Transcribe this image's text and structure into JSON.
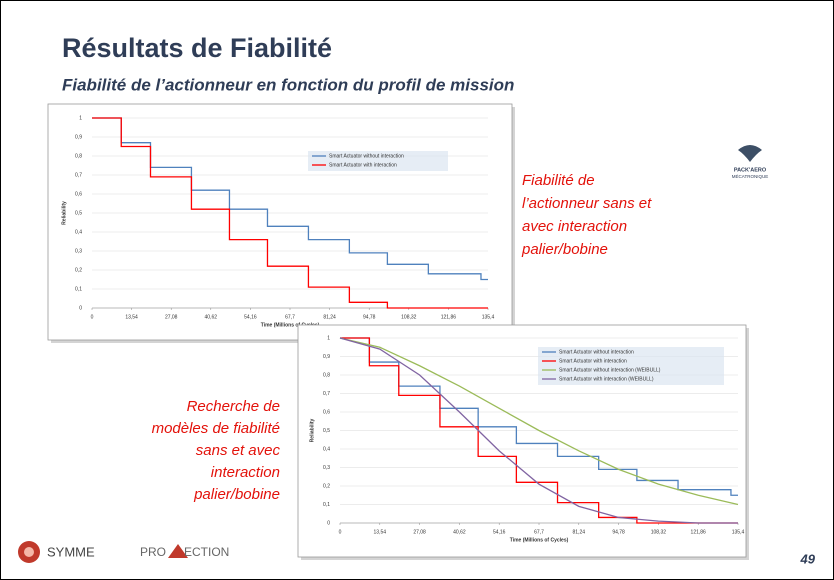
{
  "title": "Résultats de Fiabilité",
  "subtitle": "Fiabilité de l’actionneur en fonction du profil de mission",
  "note_right": [
    "Fiabilité de",
    "l’actionneur sans et",
    "avec interaction",
    "palier/bobine"
  ],
  "note_left": [
    "Recherche de",
    "modèles de fiabilité",
    "sans et avec",
    "interaction",
    "palier/bobine"
  ],
  "logo_top": [
    "PACK'AERO",
    "MÉCATRONIQUE"
  ],
  "footer": {
    "logo1": "SYMME",
    "logo2_left": "PRO",
    "logo2_right": "ECTION",
    "page": 49
  },
  "chart_data": [
    {
      "type": "line",
      "xlabel": "Time (Millions of Cycles)",
      "ylabel": "Reliability",
      "xlim": [
        0,
        135.4
      ],
      "xticks": [
        0,
        {
          "value": 13.54,
          "label": "13,54"
        },
        {
          "value": 27.08,
          "label": "27,08"
        },
        {
          "value": 40.62,
          "label": "40,62"
        },
        {
          "value": 54.16,
          "label": "54,16"
        },
        {
          "value": 67.7,
          "label": "67,7"
        },
        {
          "value": 81.24,
          "label": "81,24"
        },
        {
          "value": 94.78,
          "label": "94,78"
        },
        {
          "value": 108.32,
          "label": "108,32"
        },
        {
          "value": 121.86,
          "label": "121,86"
        },
        {
          "value": 135.4,
          "label": "135,4"
        }
      ],
      "ylim": [
        0,
        1
      ],
      "yticks": [
        0,
        {
          "value": 0.1,
          "label": "0,1"
        },
        {
          "value": 0.2,
          "label": "0,2"
        },
        {
          "value": 0.3,
          "label": "0,3"
        },
        {
          "value": 0.4,
          "label": "0,4"
        },
        {
          "value": 0.5,
          "label": "0,5"
        },
        {
          "value": 0.6,
          "label": "0,6"
        },
        {
          "value": 0.7,
          "label": "0,7"
        },
        {
          "value": 0.8,
          "label": "0,8"
        },
        {
          "value": 0.9,
          "label": "0,9"
        },
        1
      ],
      "grid": true,
      "series": [
        {
          "name": "Smart Actuator without interaction",
          "color": "#4f81bd",
          "x": [
            0,
            10,
            10,
            20,
            20,
            34,
            34,
            47,
            47,
            60,
            60,
            74,
            74,
            88,
            88,
            101,
            101,
            115,
            115,
            133,
            133,
            135.4
          ],
          "values": [
            1,
            1,
            0.87,
            0.87,
            0.74,
            0.74,
            0.62,
            0.62,
            0.52,
            0.52,
            0.43,
            0.43,
            0.36,
            0.36,
            0.29,
            0.29,
            0.23,
            0.23,
            0.18,
            0.18,
            0.15,
            0.15
          ]
        },
        {
          "name": "Smart Actuator with interaction",
          "color": "#ff0000",
          "x": [
            0,
            10,
            10,
            20,
            20,
            34,
            34,
            47,
            47,
            60,
            60,
            74,
            74,
            88,
            88,
            101,
            101,
            135.4
          ],
          "values": [
            1,
            1,
            0.85,
            0.85,
            0.69,
            0.69,
            0.52,
            0.52,
            0.36,
            0.36,
            0.22,
            0.22,
            0.11,
            0.11,
            0.03,
            0.03,
            0,
            0
          ]
        }
      ]
    },
    {
      "type": "line",
      "xlabel": "Time (Millions of Cycles)",
      "ylabel": "Reliability",
      "xlim": [
        0,
        135.4
      ],
      "xticks": [
        0,
        {
          "value": 13.54,
          "label": "13,54"
        },
        {
          "value": 27.08,
          "label": "27,08"
        },
        {
          "value": 40.62,
          "label": "40,62"
        },
        {
          "value": 54.16,
          "label": "54,16"
        },
        {
          "value": 67.7,
          "label": "67,7"
        },
        {
          "value": 81.24,
          "label": "81,24"
        },
        {
          "value": 94.78,
          "label": "94,78"
        },
        {
          "value": 108.32,
          "label": "108,32"
        },
        {
          "value": 121.86,
          "label": "121,86"
        },
        {
          "value": 135.4,
          "label": "135,4"
        }
      ],
      "ylim": [
        0,
        1
      ],
      "yticks": [
        0,
        {
          "value": 0.1,
          "label": "0,1"
        },
        {
          "value": 0.2,
          "label": "0,2"
        },
        {
          "value": 0.3,
          "label": "0,3"
        },
        {
          "value": 0.4,
          "label": "0,4"
        },
        {
          "value": 0.5,
          "label": "0,5"
        },
        {
          "value": 0.6,
          "label": "0,6"
        },
        {
          "value": 0.7,
          "label": "0,7"
        },
        {
          "value": 0.8,
          "label": "0,8"
        },
        {
          "value": 0.9,
          "label": "0,9"
        },
        1
      ],
      "grid": true,
      "series": [
        {
          "name": "Smart Actuator without interaction",
          "color": "#4f81bd",
          "x": [
            0,
            10,
            10,
            20,
            20,
            34,
            34,
            47,
            47,
            60,
            60,
            74,
            74,
            88,
            88,
            101,
            101,
            115,
            115,
            133,
            133,
            135.4
          ],
          "values": [
            1,
            1,
            0.87,
            0.87,
            0.74,
            0.74,
            0.62,
            0.62,
            0.52,
            0.52,
            0.43,
            0.43,
            0.36,
            0.36,
            0.29,
            0.29,
            0.23,
            0.23,
            0.18,
            0.18,
            0.15,
            0.15
          ]
        },
        {
          "name": "Smart Actuator with interaction",
          "color": "#ff0000",
          "x": [
            0,
            10,
            10,
            20,
            20,
            34,
            34,
            47,
            47,
            60,
            60,
            74,
            74,
            88,
            88,
            101,
            101,
            135.4
          ],
          "values": [
            1,
            1,
            0.85,
            0.85,
            0.69,
            0.69,
            0.52,
            0.52,
            0.36,
            0.36,
            0.22,
            0.22,
            0.11,
            0.11,
            0.03,
            0.03,
            0,
            0
          ]
        },
        {
          "name": "Smart Actuator without interaction (WEIBULL)",
          "color": "#9bbb59",
          "x": [
            0,
            13.54,
            27.08,
            40.62,
            54.16,
            67.7,
            81.24,
            94.78,
            108.32,
            121.86,
            135.4
          ],
          "values": [
            1,
            0.95,
            0.85,
            0.74,
            0.62,
            0.5,
            0.39,
            0.29,
            0.21,
            0.15,
            0.1
          ]
        },
        {
          "name": "Smart Actuator with interaction (WEIBULL)",
          "color": "#8064a2",
          "x": [
            0,
            13.54,
            27.08,
            40.62,
            54.16,
            67.7,
            81.24,
            94.78,
            108.32,
            121.86,
            135.4
          ],
          "values": [
            1,
            0.94,
            0.8,
            0.6,
            0.39,
            0.21,
            0.09,
            0.03,
            0.01,
            0,
            0
          ]
        }
      ]
    }
  ]
}
